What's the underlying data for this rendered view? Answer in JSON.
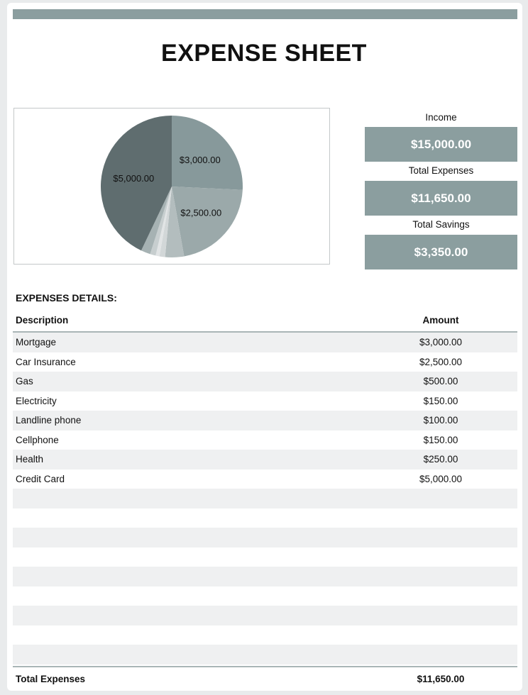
{
  "title": "EXPENSE SHEET",
  "summary": {
    "income_label": "Income",
    "income_value": "$15,000.00",
    "expenses_label": "Total Expenses",
    "expenses_value": "$11,650.00",
    "savings_label": "Total Savings",
    "savings_value": "$3,350.00"
  },
  "details_heading": "EXPENSES DETAILS:",
  "table": {
    "col_description": "Description",
    "col_amount": "Amount",
    "rows": [
      {
        "description": "Mortgage",
        "amount": "$3,000.00"
      },
      {
        "description": "Car Insurance",
        "amount": "$2,500.00"
      },
      {
        "description": "Gas",
        "amount": "$500.00"
      },
      {
        "description": "Electricity",
        "amount": "$150.00"
      },
      {
        "description": "Landline phone",
        "amount": "$100.00"
      },
      {
        "description": "Cellphone",
        "amount": "$150.00"
      },
      {
        "description": "Health",
        "amount": "$250.00"
      },
      {
        "description": "Credit Card",
        "amount": "$5,000.00"
      },
      {
        "description": "",
        "amount": ""
      },
      {
        "description": "",
        "amount": ""
      },
      {
        "description": "",
        "amount": ""
      },
      {
        "description": "",
        "amount": ""
      },
      {
        "description": "",
        "amount": ""
      },
      {
        "description": "",
        "amount": ""
      },
      {
        "description": "",
        "amount": ""
      },
      {
        "description": "",
        "amount": ""
      },
      {
        "description": "",
        "amount": ""
      }
    ]
  },
  "total": {
    "label": "Total Expenses",
    "value": "$11,650.00"
  },
  "colors": {
    "accent": "#8b9e9f",
    "row_shade": "#eff0f1"
  },
  "chart_data": {
    "type": "pie",
    "title": "",
    "categories": [
      "Mortgage",
      "Car Insurance",
      "Gas",
      "Electricity",
      "Landline phone",
      "Cellphone",
      "Health",
      "Credit Card"
    ],
    "values": [
      3000,
      2500,
      500,
      150,
      100,
      150,
      250,
      5000
    ],
    "slice_labels": [
      "$3,000.00",
      "$2,500.00",
      "",
      "",
      "",
      "",
      "",
      "$5,000.00"
    ],
    "colors": [
      "#87999b",
      "#9ba9aa",
      "#b3bdbe",
      "#d2d7d8",
      "#e1e4e5",
      "#c7cecf",
      "#a6b2b3",
      "#5f6d6f"
    ],
    "legend": "none"
  }
}
